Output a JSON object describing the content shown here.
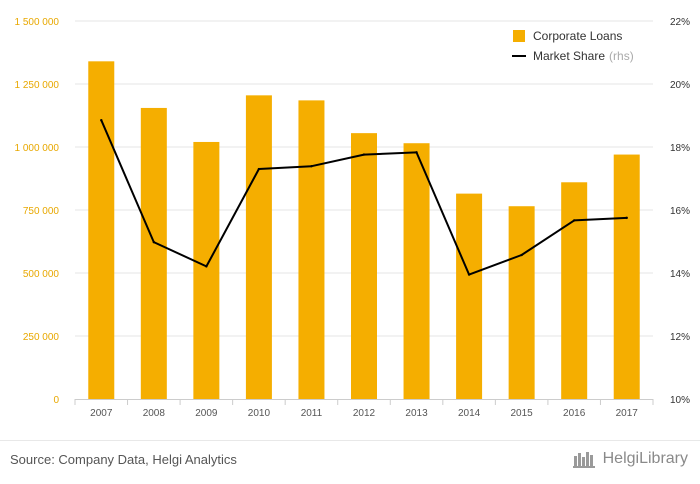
{
  "chart_data": {
    "type": "bar",
    "categories": [
      "2007",
      "2008",
      "2009",
      "2010",
      "2011",
      "2012",
      "2013",
      "2014",
      "2015",
      "2016",
      "2017"
    ],
    "series": [
      {
        "name": "Corporate Loans",
        "type": "bar",
        "axis": "left",
        "color": "#F5AE00",
        "values": [
          1340000,
          1155000,
          1020000,
          1205000,
          1185000,
          1055000,
          1015000,
          815000,
          765000,
          860000,
          970000
        ]
      },
      {
        "name": "Market Share",
        "axis_note": "(rhs)",
        "type": "line",
        "axis": "right",
        "color": "#000000",
        "values": [
          18.85,
          14.98,
          14.21,
          17.3,
          17.39,
          17.76,
          17.83,
          13.95,
          14.57,
          15.67,
          15.75
        ]
      }
    ],
    "y_left": {
      "ylim": [
        0,
        1500000
      ],
      "ticks": [
        0,
        250000,
        500000,
        750000,
        1000000,
        1250000,
        1500000
      ],
      "tick_labels": [
        "0",
        "250 000",
        "500 000",
        "750 000",
        "1 000 000",
        "1 250 000",
        "1 500 000"
      ],
      "label_color": "#E8A800"
    },
    "y_right": {
      "ylim": [
        10,
        22
      ],
      "ticks": [
        10,
        12,
        14,
        16,
        18,
        20,
        22
      ],
      "tick_labels": [
        "10%",
        "12%",
        "14%",
        "16%",
        "18%",
        "20%",
        "22%"
      ]
    },
    "grid": true,
    "legend_position": "top-right"
  },
  "footer": {
    "source": "Source: Company Data, Helgi Analytics",
    "brand": "HelgiLibrary",
    "brand_icon": "library-icon"
  }
}
